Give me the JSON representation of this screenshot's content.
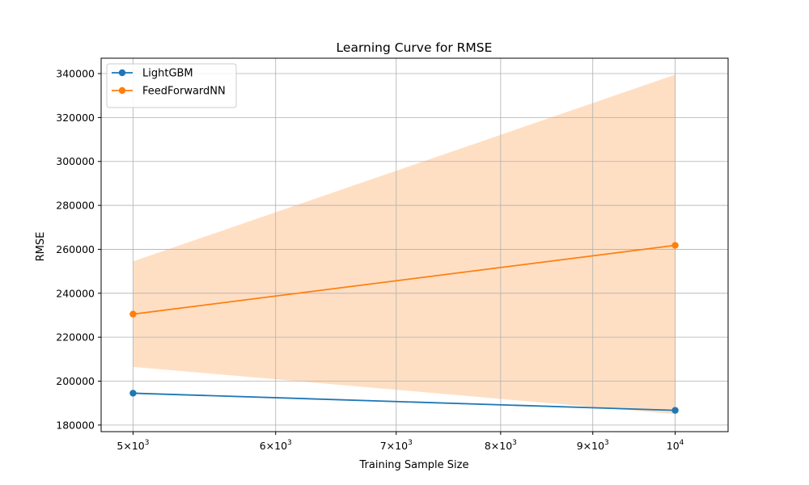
{
  "chart_data": {
    "type": "line",
    "title": "Learning Curve for RMSE",
    "xlabel": "Training Sample Size",
    "ylabel": "RMSE",
    "xscale": "log",
    "xlim": [
      4800,
      10700
    ],
    "ylim": [
      177000,
      347000
    ],
    "x": [
      5000,
      10000
    ],
    "x_ticks": [
      {
        "value": 5000,
        "mantissa": "5",
        "times": "×",
        "base": "10",
        "exp": "3"
      },
      {
        "value": 6000,
        "mantissa": "6",
        "times": "×",
        "base": "10",
        "exp": "3"
      },
      {
        "value": 7000,
        "mantissa": "7",
        "times": "×",
        "base": "10",
        "exp": "3"
      },
      {
        "value": 8000,
        "mantissa": "8",
        "times": "×",
        "base": "10",
        "exp": "3"
      },
      {
        "value": 9000,
        "mantissa": "9",
        "times": "×",
        "base": "10",
        "exp": "3"
      },
      {
        "value": 10000,
        "mantissa": "",
        "times": "",
        "base": "10",
        "exp": "4"
      }
    ],
    "y_ticks": [
      180000,
      200000,
      220000,
      240000,
      260000,
      280000,
      300000,
      320000,
      340000
    ],
    "grid": true,
    "legend_position": "top-left",
    "series": [
      {
        "name": "LightGBM",
        "color": "#1f77b4",
        "marker": "circle",
        "values": [
          194500,
          186700
        ]
      },
      {
        "name": "FeedForwardNN",
        "color": "#ff7f0e",
        "marker": "circle",
        "values": [
          230500,
          261800
        ],
        "band": {
          "color": "#ffdfc4",
          "lower": [
            206500,
            185000
          ],
          "upper": [
            254500,
            339500
          ]
        }
      }
    ]
  }
}
